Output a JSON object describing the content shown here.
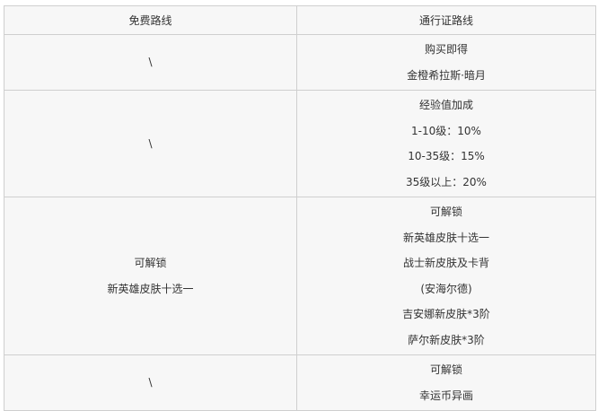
{
  "header": {
    "free": "免费路线",
    "pass": "通行证路线"
  },
  "rows": [
    {
      "free": [
        "\\"
      ],
      "pass": [
        "购买即得",
        "金橙希拉斯·暗月"
      ]
    },
    {
      "free": [
        "\\"
      ],
      "pass": [
        "经验值加成",
        "1-10级：10%",
        "10-35级：15%",
        "35级以上：20%"
      ]
    },
    {
      "free": [
        "可解锁",
        "新英雄皮肤十选一"
      ],
      "pass": [
        "可解锁",
        "新英雄皮肤十选一",
        "战士新皮肤及卡背",
        "(安海尔德)",
        "吉安娜新皮肤*3阶",
        "萨尔新皮肤*3阶"
      ]
    },
    {
      "free": [
        "\\"
      ],
      "pass": [
        "可解锁",
        "幸运币异画"
      ]
    }
  ]
}
